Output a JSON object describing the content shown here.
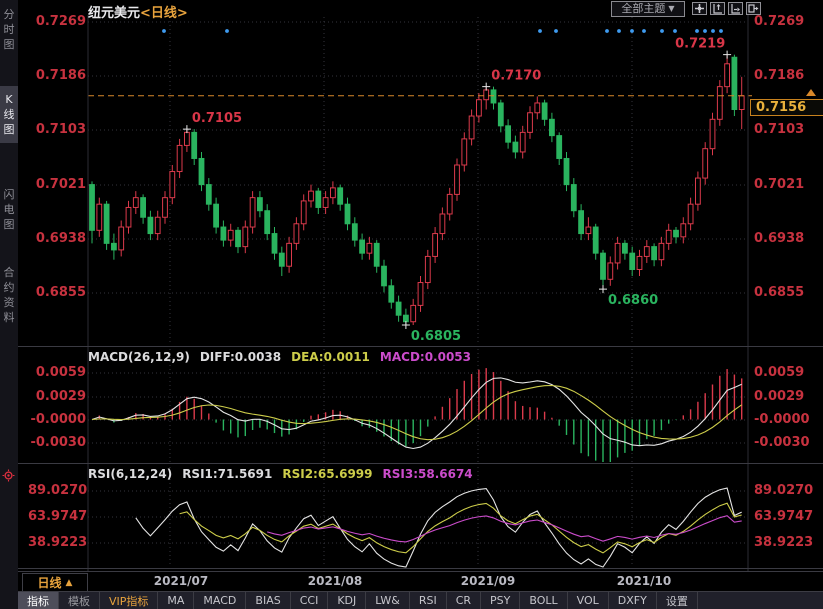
{
  "header": {
    "title": "纽元美元",
    "period_tag": "<日线>",
    "theme_label": "全部主题",
    "theme_caret": "▼",
    "tool_icons": [
      "pan-tool",
      "fit-y-axis",
      "fit-x-axis",
      "shift-right"
    ]
  },
  "sidebar": {
    "items": [
      {
        "id": "time-chart",
        "label": "分时图",
        "selected": false
      },
      {
        "id": "kline-chart",
        "label": "K线图",
        "selected": true
      },
      {
        "id": "lightning-chart",
        "label": "闪电图",
        "selected": false
      },
      {
        "id": "contract-info",
        "label": "合约资料",
        "selected": false
      }
    ]
  },
  "main_chart": {
    "y_axis_labels": [
      "0.7269",
      "0.7186",
      "0.7103",
      "0.7021",
      "0.6938",
      "0.6855"
    ],
    "x_axis_labels": [
      "2021/07",
      "2021/08",
      "2021/09",
      "2021/10"
    ],
    "event_dot_x": [
      164,
      227,
      540,
      556,
      607,
      619,
      632,
      644,
      662,
      675,
      697,
      705,
      713,
      721
    ]
  },
  "price_badge": {
    "value": "0.7156"
  },
  "macd": {
    "header": {
      "name": "MACD(26,12,9)",
      "diff": "DIFF:0.0038",
      "dea": "DEA:0.0011",
      "macd": "MACD:0.0053"
    },
    "y_axis_labels": [
      "0.0059",
      "0.0029",
      "-0.0000",
      "-0.0030"
    ]
  },
  "rsi": {
    "header": {
      "name": "RSI(6,12,24)",
      "rsi1": "RSI1:71.5691",
      "rsi2": "RSI2:65.6999",
      "rsi3": "RSI3:58.6674"
    },
    "y_axis_labels": [
      "89.0270",
      "63.9747",
      "38.9223"
    ]
  },
  "bottom": {
    "period_label": "日线",
    "period_caret": "▲",
    "tabs": [
      {
        "id": "indicator",
        "label": "指标",
        "state": "selected"
      },
      {
        "id": "template",
        "label": "模板",
        "state": "dim"
      },
      {
        "id": "vip",
        "label": "VIP指标",
        "state": "vip"
      },
      {
        "id": "ma",
        "label": "MA",
        "state": ""
      },
      {
        "id": "macd",
        "label": "MACD",
        "state": ""
      },
      {
        "id": "bias",
        "label": "BIAS",
        "state": ""
      },
      {
        "id": "cci",
        "label": "CCI",
        "state": ""
      },
      {
        "id": "kdj",
        "label": "KDJ",
        "state": ""
      },
      {
        "id": "lw",
        "label": "LW&",
        "state": ""
      },
      {
        "id": "rsi",
        "label": "RSI",
        "state": ""
      },
      {
        "id": "cr",
        "label": "CR",
        "state": ""
      },
      {
        "id": "psy",
        "label": "PSY",
        "state": ""
      },
      {
        "id": "boll",
        "label": "BOLL",
        "state": ""
      },
      {
        "id": "vol",
        "label": "VOL",
        "state": ""
      },
      {
        "id": "dxfy",
        "label": "DXFY",
        "state": ""
      },
      {
        "id": "settings",
        "label": "设置",
        "state": ""
      }
    ]
  },
  "colors": {
    "up_red": "#db3a4b",
    "down_green": "#2ab45f",
    "axis_red": "#c7323f",
    "accent_orange": "#e8a33d",
    "dashed_price_line": "#d8882a",
    "badge_text": "#e9b13c",
    "event_dot_blue": "#3f9bf0",
    "diff_white": "#e4e4e4",
    "dea_yellow": "#cdcd4a",
    "macd_magenta": "#cb4ccb",
    "grid_gray": "#33343c"
  },
  "chart_data": [
    {
      "type": "candlestick",
      "title": "纽元美元 日线",
      "x_tick_labels": [
        "2021/07",
        "2021/08",
        "2021/09",
        "2021/10"
      ],
      "x_tick_indices": [
        10,
        31,
        52,
        73
      ],
      "y_ticks": [
        0.7269,
        0.7186,
        0.7103,
        0.7021,
        0.6938,
        0.6855
      ],
      "ylim": [
        0.6773,
        0.728
      ],
      "last_price": 0.7156,
      "grid": true,
      "swing_labels": [
        {
          "index": 13,
          "price": 0.7105,
          "text": "0.7105",
          "kind": "high",
          "side": "right"
        },
        {
          "index": 54,
          "price": 0.717,
          "text": "0.7170",
          "kind": "high",
          "side": "right"
        },
        {
          "index": 87,
          "price": 0.7219,
          "text": "0.7219",
          "kind": "high",
          "side": "left"
        },
        {
          "index": 43,
          "price": 0.6805,
          "text": "0.6805",
          "kind": "low",
          "side": "right"
        },
        {
          "index": 70,
          "price": 0.686,
          "text": "0.6860",
          "kind": "low",
          "side": "right"
        }
      ],
      "candles_ohlc": [
        [
          0.702,
          0.7025,
          0.693,
          0.695
        ],
        [
          0.695,
          0.7,
          0.694,
          0.699
        ],
        [
          0.699,
          0.6995,
          0.692,
          0.693
        ],
        [
          0.693,
          0.6945,
          0.6905,
          0.692
        ],
        [
          0.692,
          0.6965,
          0.691,
          0.6955
        ],
        [
          0.6955,
          0.6995,
          0.6945,
          0.6985
        ],
        [
          0.6985,
          0.701,
          0.6975,
          0.7
        ],
        [
          0.7,
          0.7005,
          0.696,
          0.697
        ],
        [
          0.697,
          0.698,
          0.6935,
          0.6945
        ],
        [
          0.6945,
          0.698,
          0.6935,
          0.697
        ],
        [
          0.697,
          0.701,
          0.696,
          0.7
        ],
        [
          0.7,
          0.705,
          0.699,
          0.704
        ],
        [
          0.704,
          0.709,
          0.703,
          0.708
        ],
        [
          0.708,
          0.7105,
          0.707,
          0.71
        ],
        [
          0.71,
          0.7105,
          0.705,
          0.706
        ],
        [
          0.706,
          0.707,
          0.701,
          0.702
        ],
        [
          0.702,
          0.703,
          0.698,
          0.699
        ],
        [
          0.699,
          0.7,
          0.6945,
          0.6955
        ],
        [
          0.6955,
          0.6965,
          0.6925,
          0.6935
        ],
        [
          0.6935,
          0.696,
          0.6925,
          0.695
        ],
        [
          0.695,
          0.6955,
          0.6915,
          0.6925
        ],
        [
          0.6925,
          0.6965,
          0.6915,
          0.6955
        ],
        [
          0.6955,
          0.701,
          0.6945,
          0.7
        ],
        [
          0.7,
          0.701,
          0.697,
          0.698
        ],
        [
          0.698,
          0.699,
          0.6935,
          0.6945
        ],
        [
          0.6945,
          0.6955,
          0.6905,
          0.6915
        ],
        [
          0.6915,
          0.6925,
          0.688,
          0.6895
        ],
        [
          0.6895,
          0.694,
          0.6885,
          0.693
        ],
        [
          0.693,
          0.697,
          0.692,
          0.696
        ],
        [
          0.696,
          0.7005,
          0.695,
          0.6995
        ],
        [
          0.6995,
          0.702,
          0.6985,
          0.701
        ],
        [
          0.701,
          0.7015,
          0.6975,
          0.6985
        ],
        [
          0.6985,
          0.701,
          0.6975,
          0.7
        ],
        [
          0.7,
          0.7025,
          0.699,
          0.7015
        ],
        [
          0.7015,
          0.702,
          0.698,
          0.699
        ],
        [
          0.699,
          0.7,
          0.695,
          0.696
        ],
        [
          0.696,
          0.697,
          0.6925,
          0.6935
        ],
        [
          0.6935,
          0.6945,
          0.6905,
          0.6915
        ],
        [
          0.6915,
          0.694,
          0.6905,
          0.693
        ],
        [
          0.693,
          0.6935,
          0.6885,
          0.6895
        ],
        [
          0.6895,
          0.6905,
          0.6855,
          0.6865
        ],
        [
          0.6865,
          0.6875,
          0.683,
          0.684
        ],
        [
          0.684,
          0.685,
          0.681,
          0.682
        ],
        [
          0.682,
          0.683,
          0.6805,
          0.681
        ],
        [
          0.681,
          0.6845,
          0.6805,
          0.6835
        ],
        [
          0.6835,
          0.688,
          0.6825,
          0.687
        ],
        [
          0.687,
          0.692,
          0.686,
          0.691
        ],
        [
          0.691,
          0.6955,
          0.69,
          0.6945
        ],
        [
          0.6945,
          0.6985,
          0.6935,
          0.6975
        ],
        [
          0.6975,
          0.7015,
          0.6965,
          0.7005
        ],
        [
          0.7005,
          0.706,
          0.6995,
          0.705
        ],
        [
          0.705,
          0.71,
          0.704,
          0.709
        ],
        [
          0.709,
          0.7135,
          0.708,
          0.7125
        ],
        [
          0.7125,
          0.716,
          0.7115,
          0.715
        ],
        [
          0.715,
          0.717,
          0.7135,
          0.7165
        ],
        [
          0.7165,
          0.717,
          0.7135,
          0.7145
        ],
        [
          0.7145,
          0.715,
          0.71,
          0.711
        ],
        [
          0.711,
          0.712,
          0.7075,
          0.7085
        ],
        [
          0.7085,
          0.7095,
          0.706,
          0.707
        ],
        [
          0.707,
          0.711,
          0.706,
          0.71
        ],
        [
          0.71,
          0.714,
          0.709,
          0.713
        ],
        [
          0.713,
          0.7155,
          0.712,
          0.7145
        ],
        [
          0.7145,
          0.715,
          0.711,
          0.712
        ],
        [
          0.712,
          0.713,
          0.7085,
          0.7095
        ],
        [
          0.7095,
          0.71,
          0.705,
          0.706
        ],
        [
          0.706,
          0.707,
          0.701,
          0.702
        ],
        [
          0.702,
          0.703,
          0.697,
          0.698
        ],
        [
          0.698,
          0.699,
          0.6935,
          0.6945
        ],
        [
          0.6945,
          0.697,
          0.6935,
          0.6955
        ],
        [
          0.6955,
          0.696,
          0.6905,
          0.6915
        ],
        [
          0.6915,
          0.692,
          0.686,
          0.6875
        ],
        [
          0.6875,
          0.691,
          0.6865,
          0.69
        ],
        [
          0.69,
          0.694,
          0.689,
          0.693
        ],
        [
          0.693,
          0.6935,
          0.6905,
          0.6915
        ],
        [
          0.6915,
          0.6925,
          0.688,
          0.689
        ],
        [
          0.689,
          0.692,
          0.688,
          0.691
        ],
        [
          0.691,
          0.6935,
          0.69,
          0.6925
        ],
        [
          0.6925,
          0.693,
          0.6895,
          0.6905
        ],
        [
          0.6905,
          0.694,
          0.6895,
          0.693
        ],
        [
          0.693,
          0.696,
          0.692,
          0.695
        ],
        [
          0.695,
          0.6955,
          0.693,
          0.694
        ],
        [
          0.694,
          0.697,
          0.693,
          0.696
        ],
        [
          0.696,
          0.7,
          0.695,
          0.699
        ],
        [
          0.699,
          0.704,
          0.698,
          0.703
        ],
        [
          0.703,
          0.7085,
          0.702,
          0.7075
        ],
        [
          0.7075,
          0.713,
          0.7065,
          0.712
        ],
        [
          0.712,
          0.718,
          0.711,
          0.717
        ],
        [
          0.717,
          0.7219,
          0.716,
          0.7205
        ],
        [
          0.7215,
          0.7219,
          0.7125,
          0.7135
        ],
        [
          0.7135,
          0.7185,
          0.7105,
          0.7156
        ]
      ]
    },
    {
      "type": "line+bar",
      "name": "MACD",
      "params": [
        26,
        12,
        9
      ],
      "readout": {
        "diff": 0.0038,
        "dea": 0.0011,
        "macd": 0.0053
      },
      "y_ticks": [
        0.0059,
        0.0029,
        0.0,
        -0.003
      ],
      "derived_from": "closes of candles_ohlc",
      "legend": [
        "DIFF (white)",
        "DEA (yellow)",
        "MACD histogram (red up / green down)"
      ]
    },
    {
      "type": "line",
      "name": "RSI",
      "params": [
        6,
        12,
        24
      ],
      "readout": {
        "rsi1": 71.5691,
        "rsi2": 65.6999,
        "rsi3": 58.6674
      },
      "y_ticks": [
        89.027,
        63.9747,
        38.9223
      ],
      "derived_from": "closes of candles_ohlc",
      "legend": [
        "RSI1 (white)",
        "RSI2 (yellow)",
        "RSI3 (magenta)"
      ]
    }
  ]
}
